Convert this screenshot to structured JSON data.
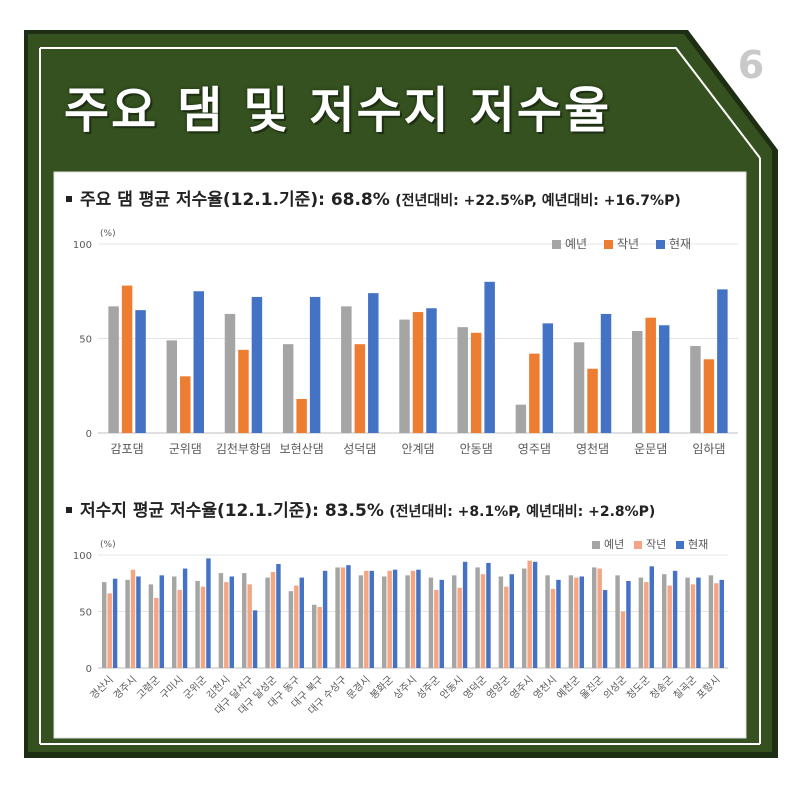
{
  "page": {
    "number": "6",
    "title": "주요 댐 및 저수지 저수율",
    "colors": {
      "dark_green": "#34511f",
      "frame_dark": "#1d2e12",
      "card": "#ffffff"
    }
  },
  "sections": [
    {
      "heading_main": "주요 댐 평균 저수율(12.1.기준): 68.8%",
      "heading_note": "(전년대비: +22.5%P, 예년대비: +16.7%P)"
    },
    {
      "heading_main": "저수지 평균 저수율(12.1.기준): 83.5%",
      "heading_note": "(전년대비: +8.1%P, 예년대비: +2.8%P)"
    }
  ],
  "chart_data": [
    {
      "type": "bar",
      "ylabel": "(%)",
      "ylim": [
        0,
        100
      ],
      "yticks": [
        0,
        50,
        100
      ],
      "grid": true,
      "legend_position": "top-right",
      "categories": [
        "감포댐",
        "군위댐",
        "김천부항댐",
        "보현산댐",
        "성덕댐",
        "안계댐",
        "안동댐",
        "영주댐",
        "영천댐",
        "운문댐",
        "임하댐"
      ],
      "series": [
        {
          "name": "예년",
          "color": "#a5a5a5",
          "values": [
            67,
            49,
            63,
            47,
            67,
            60,
            56,
            15,
            48,
            54,
            46
          ]
        },
        {
          "name": "작년",
          "color": "#ed7d31",
          "values": [
            78,
            30,
            44,
            18,
            47,
            64,
            53,
            42,
            34,
            61,
            39
          ]
        },
        {
          "name": "현재",
          "color": "#4472c4",
          "values": [
            65,
            75,
            72,
            72,
            74,
            66,
            80,
            58,
            63,
            57,
            76
          ]
        }
      ]
    },
    {
      "type": "bar",
      "ylabel": "(%)",
      "ylim": [
        0,
        100
      ],
      "yticks": [
        0,
        50,
        100
      ],
      "grid": true,
      "legend_position": "top-right",
      "categories": [
        "경산시",
        "경주시",
        "고령군",
        "구미시",
        "군위군",
        "김천시",
        "대구 달서구",
        "대구 달성군",
        "대구 동구",
        "대구 북구",
        "대구 수성구",
        "문경시",
        "봉화군",
        "상주시",
        "성주군",
        "안동시",
        "영덕군",
        "영양군",
        "영주시",
        "영천시",
        "예천군",
        "울진군",
        "의성군",
        "청도군",
        "청송군",
        "칠곡군",
        "포항시"
      ],
      "series": [
        {
          "name": "예년",
          "color": "#a5a5a5",
          "values": [
            76,
            78,
            74,
            81,
            77,
            84,
            84,
            80,
            68,
            56,
            89,
            82,
            81,
            82,
            80,
            82,
            89,
            81,
            88,
            82,
            82,
            89,
            82,
            80,
            83,
            80,
            82
          ]
        },
        {
          "name": "작년",
          "color": "#f4a582",
          "values": [
            66,
            87,
            62,
            69,
            72,
            76,
            74,
            85,
            73,
            54,
            89,
            86,
            86,
            86,
            69,
            71,
            83,
            72,
            95,
            70,
            80,
            88,
            50,
            76,
            73,
            74,
            75
          ]
        },
        {
          "name": "현재",
          "color": "#4472c4",
          "values": [
            79,
            81,
            82,
            88,
            97,
            81,
            51,
            92,
            80,
            86,
            91,
            86,
            87,
            87,
            78,
            94,
            93,
            83,
            94,
            78,
            81,
            69,
            77,
            90,
            86,
            80,
            78
          ]
        }
      ]
    }
  ]
}
